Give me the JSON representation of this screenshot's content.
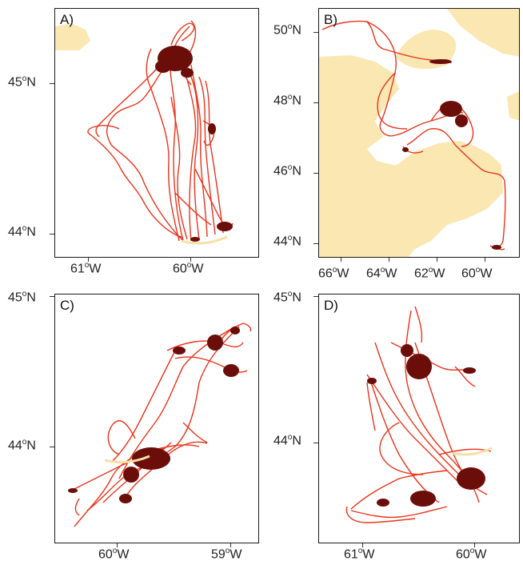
{
  "figure": {
    "panels": [
      {
        "id": "A",
        "label": "A)",
        "x_ticks": [
          {
            "deg": "61",
            "hem": "W"
          },
          {
            "deg": "60",
            "hem": "W"
          }
        ],
        "y_ticks": [
          {
            "deg": "45",
            "hem": "N"
          },
          {
            "deg": "44",
            "hem": "N"
          }
        ]
      },
      {
        "id": "B",
        "label": "B)",
        "x_ticks": [
          {
            "deg": "66",
            "hem": "W"
          },
          {
            "deg": "64",
            "hem": "W"
          },
          {
            "deg": "62",
            "hem": "W"
          },
          {
            "deg": "60",
            "hem": "W"
          }
        ],
        "y_ticks": [
          {
            "deg": "50",
            "hem": "N"
          },
          {
            "deg": "48",
            "hem": "N"
          },
          {
            "deg": "46",
            "hem": "N"
          },
          {
            "deg": "44",
            "hem": "N"
          }
        ]
      },
      {
        "id": "C",
        "label": "C)",
        "x_ticks": [
          {
            "deg": "60",
            "hem": "W"
          },
          {
            "deg": "59",
            "hem": "W"
          }
        ],
        "y_ticks": [
          {
            "deg": "45",
            "hem": "N"
          },
          {
            "deg": "44",
            "hem": "N"
          }
        ]
      },
      {
        "id": "D",
        "label": "D)",
        "x_ticks": [
          {
            "deg": "61",
            "hem": "W"
          },
          {
            "deg": "60",
            "hem": "W"
          }
        ],
        "y_ticks": [
          {
            "deg": "45",
            "hem": "N"
          },
          {
            "deg": "44",
            "hem": "N"
          }
        ]
      }
    ],
    "colors": {
      "track": "#e8341c",
      "track_dense": "#6b0d08",
      "land": "#fbe7b2",
      "array_line": "#f5e1a8",
      "frame": "#1a1a1a"
    }
  }
}
